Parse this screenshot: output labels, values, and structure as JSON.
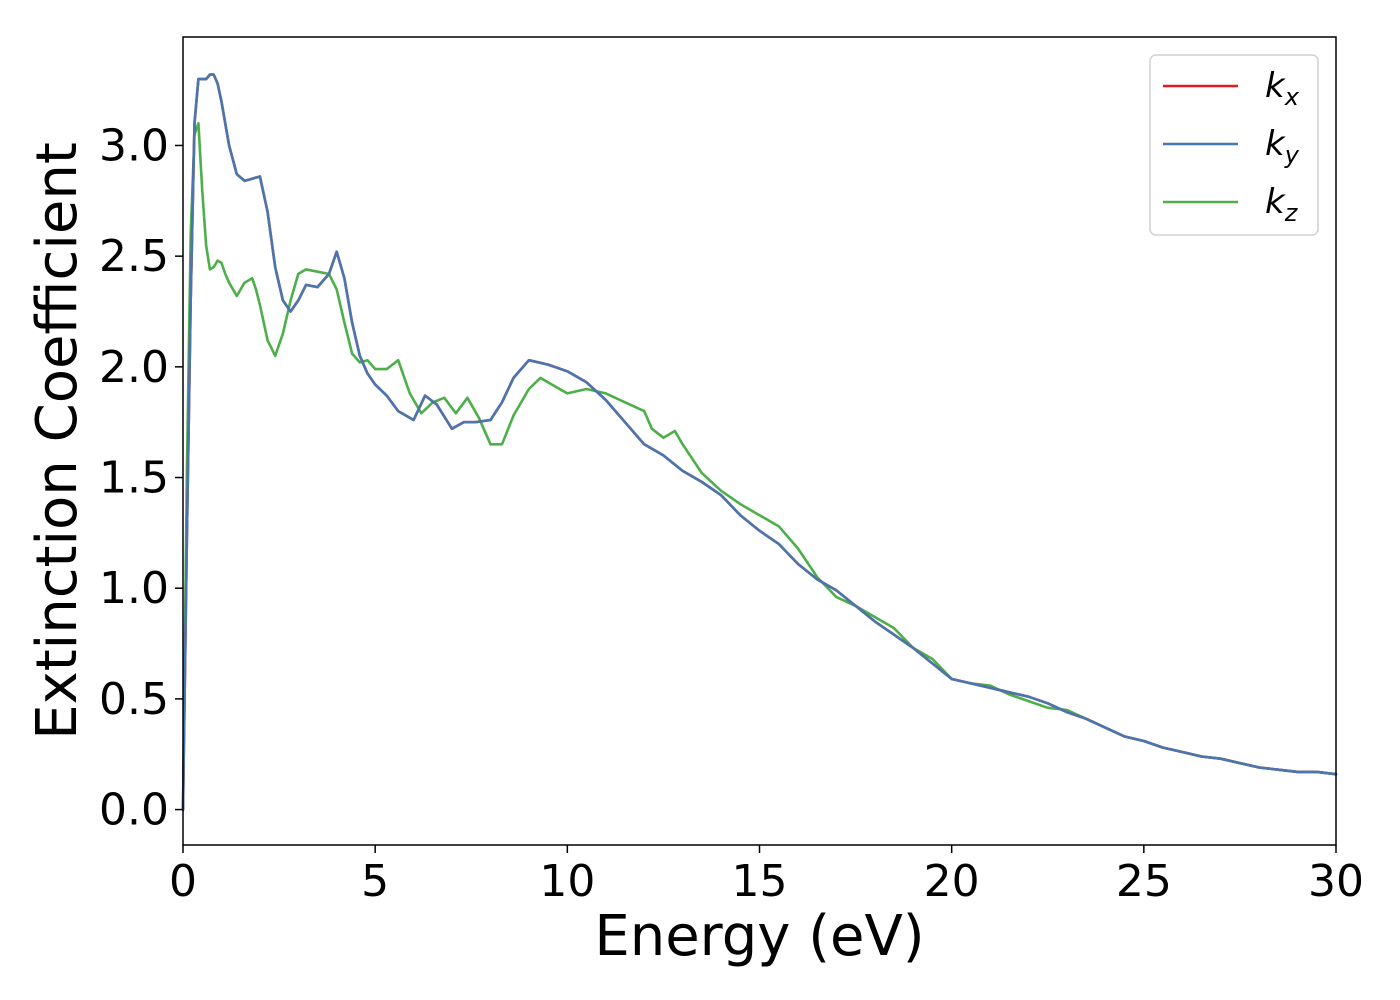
{
  "chart_data": {
    "type": "line",
    "xlabel": "Energy (eV)",
    "ylabel": "Extinction Coefficient",
    "xlim": [
      0,
      30
    ],
    "ylim": [
      -0.16,
      3.49
    ],
    "xticks": [
      0,
      5,
      10,
      15,
      20,
      25,
      30
    ],
    "xtick_labels": [
      "0",
      "5",
      "10",
      "15",
      "20",
      "25",
      "30"
    ],
    "yticks": [
      0.0,
      0.5,
      1.0,
      1.5,
      2.0,
      2.5,
      3.0
    ],
    "ytick_labels": [
      "0.0",
      "0.5",
      "1.0",
      "1.5",
      "2.0",
      "2.5",
      "3.0"
    ],
    "grid": false,
    "legend_position": "top-right",
    "series": [
      {
        "name": "k_x",
        "label_main": "k",
        "label_sub": "x",
        "color": "#e41a1c",
        "x": [
          0.0,
          0.1,
          0.2,
          0.3,
          0.4,
          0.5,
          0.6,
          0.7,
          0.8,
          0.9,
          1.0,
          1.2,
          1.4,
          1.6,
          1.8,
          2.0,
          2.2,
          2.4,
          2.6,
          2.8,
          3.0,
          3.2,
          3.5,
          3.8,
          4.0,
          4.2,
          4.4,
          4.6,
          4.8,
          5.0,
          5.3,
          5.6,
          6.0,
          6.3,
          6.6,
          7.0,
          7.3,
          7.6,
          8.0,
          8.3,
          8.6,
          9.0,
          9.5,
          10.0,
          10.5,
          11.0,
          11.5,
          12.0,
          12.5,
          13.0,
          13.5,
          14.0,
          14.5,
          15.0,
          15.5,
          16.0,
          16.5,
          17.0,
          17.5,
          18.0,
          18.5,
          19.0,
          19.5,
          20.0,
          20.5,
          21.0,
          21.5,
          22.0,
          22.5,
          23.0,
          23.5,
          24.0,
          24.5,
          25.0,
          25.5,
          26.0,
          26.5,
          27.0,
          27.5,
          28.0,
          28.5,
          29.0,
          29.5,
          30.0
        ],
        "y": [
          0.0,
          1.2,
          2.3,
          3.1,
          3.3,
          3.3,
          3.3,
          3.32,
          3.32,
          3.28,
          3.2,
          3.0,
          2.87,
          2.84,
          2.85,
          2.86,
          2.7,
          2.45,
          2.3,
          2.25,
          2.3,
          2.37,
          2.36,
          2.42,
          2.52,
          2.4,
          2.2,
          2.05,
          1.97,
          1.92,
          1.87,
          1.8,
          1.76,
          1.87,
          1.83,
          1.72,
          1.75,
          1.75,
          1.76,
          1.84,
          1.95,
          2.03,
          2.01,
          1.98,
          1.93,
          1.85,
          1.75,
          1.65,
          1.6,
          1.53,
          1.48,
          1.42,
          1.33,
          1.26,
          1.2,
          1.11,
          1.04,
          0.99,
          0.92,
          0.85,
          0.79,
          0.73,
          0.66,
          0.59,
          0.57,
          0.55,
          0.53,
          0.51,
          0.48,
          0.44,
          0.41,
          0.37,
          0.33,
          0.31,
          0.28,
          0.26,
          0.24,
          0.23,
          0.21,
          0.19,
          0.18,
          0.17,
          0.17,
          0.16
        ]
      },
      {
        "name": "k_y",
        "label_main": "k",
        "label_sub": "y",
        "color": "#4877b0",
        "x": [
          0.0,
          0.1,
          0.2,
          0.3,
          0.4,
          0.5,
          0.6,
          0.7,
          0.8,
          0.9,
          1.0,
          1.2,
          1.4,
          1.6,
          1.8,
          2.0,
          2.2,
          2.4,
          2.6,
          2.8,
          3.0,
          3.2,
          3.5,
          3.8,
          4.0,
          4.2,
          4.4,
          4.6,
          4.8,
          5.0,
          5.3,
          5.6,
          6.0,
          6.3,
          6.6,
          7.0,
          7.3,
          7.6,
          8.0,
          8.3,
          8.6,
          9.0,
          9.5,
          10.0,
          10.5,
          11.0,
          11.5,
          12.0,
          12.5,
          13.0,
          13.5,
          14.0,
          14.5,
          15.0,
          15.5,
          16.0,
          16.5,
          17.0,
          17.5,
          18.0,
          18.5,
          19.0,
          19.5,
          20.0,
          20.5,
          21.0,
          21.5,
          22.0,
          22.5,
          23.0,
          23.5,
          24.0,
          24.5,
          25.0,
          25.5,
          26.0,
          26.5,
          27.0,
          27.5,
          28.0,
          28.5,
          29.0,
          29.5,
          30.0
        ],
        "y": [
          0.0,
          1.2,
          2.3,
          3.1,
          3.3,
          3.3,
          3.3,
          3.32,
          3.32,
          3.28,
          3.2,
          3.0,
          2.87,
          2.84,
          2.85,
          2.86,
          2.7,
          2.45,
          2.3,
          2.25,
          2.3,
          2.37,
          2.36,
          2.42,
          2.52,
          2.4,
          2.2,
          2.05,
          1.97,
          1.92,
          1.87,
          1.8,
          1.76,
          1.87,
          1.83,
          1.72,
          1.75,
          1.75,
          1.76,
          1.84,
          1.95,
          2.03,
          2.01,
          1.98,
          1.93,
          1.85,
          1.75,
          1.65,
          1.6,
          1.53,
          1.48,
          1.42,
          1.33,
          1.26,
          1.2,
          1.11,
          1.04,
          0.99,
          0.92,
          0.85,
          0.79,
          0.73,
          0.66,
          0.59,
          0.57,
          0.55,
          0.53,
          0.51,
          0.48,
          0.44,
          0.41,
          0.37,
          0.33,
          0.31,
          0.28,
          0.26,
          0.24,
          0.23,
          0.21,
          0.19,
          0.18,
          0.17,
          0.17,
          0.16
        ]
      },
      {
        "name": "k_z",
        "label_main": "k",
        "label_sub": "z",
        "color": "#4daf4a",
        "x": [
          0.0,
          0.1,
          0.2,
          0.3,
          0.4,
          0.5,
          0.6,
          0.7,
          0.8,
          0.9,
          1.0,
          1.1,
          1.2,
          1.4,
          1.6,
          1.8,
          1.9,
          2.0,
          2.2,
          2.4,
          2.6,
          2.8,
          3.0,
          3.2,
          3.5,
          3.8,
          4.0,
          4.2,
          4.4,
          4.6,
          4.8,
          5.0,
          5.3,
          5.6,
          5.9,
          6.2,
          6.5,
          6.8,
          7.1,
          7.4,
          7.7,
          8.0,
          8.3,
          8.6,
          9.0,
          9.3,
          9.6,
          10.0,
          10.5,
          11.0,
          11.5,
          12.0,
          12.2,
          12.5,
          12.8,
          13.0,
          13.5,
          14.0,
          14.5,
          15.0,
          15.5,
          16.0,
          16.5,
          17.0,
          17.5,
          18.0,
          18.5,
          19.0,
          19.5,
          20.0,
          20.5,
          21.0,
          21.5,
          22.0,
          22.5,
          23.0,
          23.5,
          24.0,
          24.5,
          25.0,
          25.5,
          26.0,
          26.5,
          27.0,
          27.5,
          28.0,
          28.5,
          29.0,
          29.5,
          30.0
        ],
        "y": [
          0.0,
          1.5,
          2.6,
          3.05,
          3.1,
          2.8,
          2.55,
          2.44,
          2.45,
          2.48,
          2.47,
          2.42,
          2.38,
          2.32,
          2.38,
          2.4,
          2.35,
          2.28,
          2.12,
          2.05,
          2.15,
          2.3,
          2.42,
          2.44,
          2.43,
          2.42,
          2.35,
          2.2,
          2.06,
          2.02,
          2.03,
          1.99,
          1.99,
          2.03,
          1.88,
          1.79,
          1.84,
          1.86,
          1.79,
          1.86,
          1.77,
          1.65,
          1.65,
          1.78,
          1.9,
          1.95,
          1.92,
          1.88,
          1.9,
          1.88,
          1.84,
          1.8,
          1.72,
          1.68,
          1.71,
          1.65,
          1.52,
          1.44,
          1.38,
          1.33,
          1.28,
          1.18,
          1.05,
          0.96,
          0.92,
          0.87,
          0.82,
          0.73,
          0.68,
          0.59,
          0.57,
          0.56,
          0.52,
          0.49,
          0.46,
          0.45,
          0.41,
          0.37,
          0.33,
          0.31,
          0.28,
          0.26,
          0.24,
          0.23,
          0.21,
          0.19,
          0.18,
          0.17,
          0.17,
          0.16
        ]
      }
    ]
  }
}
